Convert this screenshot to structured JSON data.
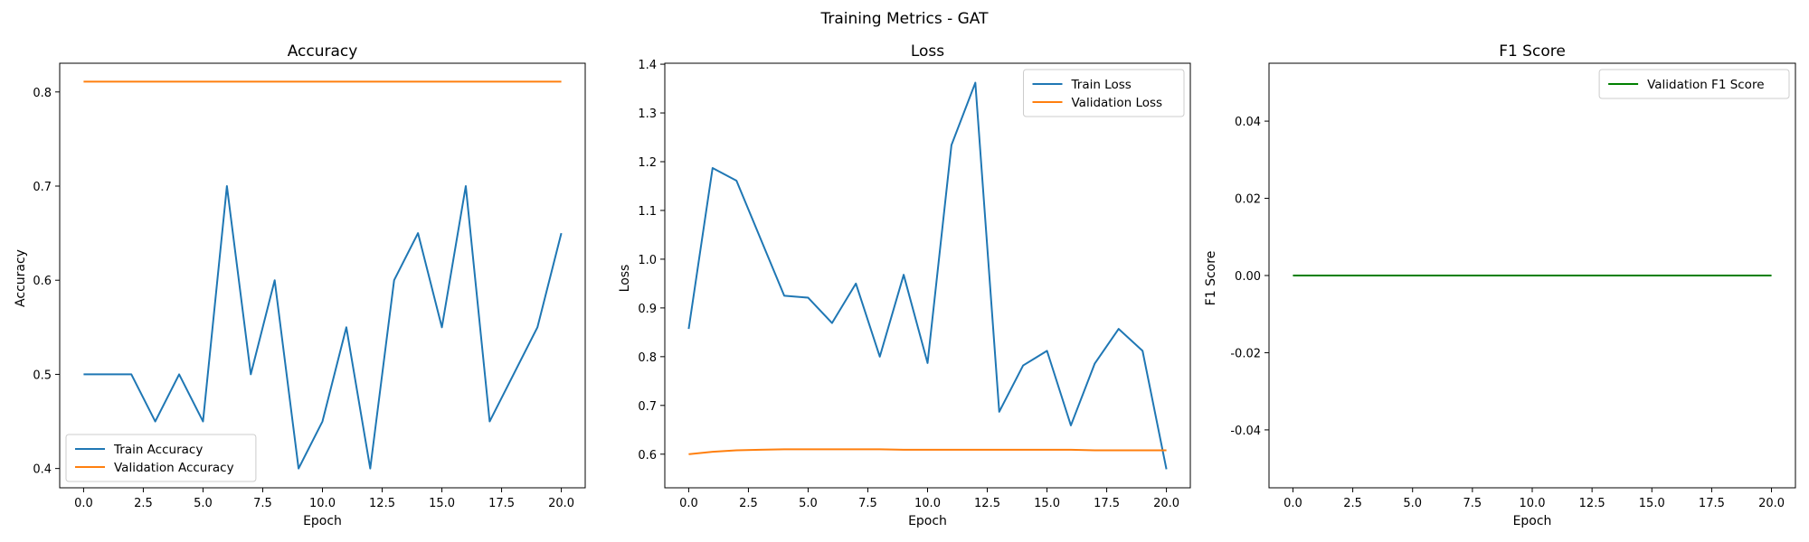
{
  "figure": {
    "suptitle": "Training Metrics - GAT"
  },
  "colors": {
    "train": "#1f77b4",
    "validation": "#ff7f0e",
    "f1": "#008000",
    "axes": "#000000",
    "legend_border": "#cccccc"
  },
  "chart_data": [
    {
      "type": "line",
      "title": "Accuracy",
      "xlabel": "Epoch",
      "ylabel": "Accuracy",
      "xlim": [
        -1.0,
        21.0
      ],
      "ylim": [
        0.3795,
        0.8305
      ],
      "xticks": [
        0.0,
        2.5,
        5.0,
        7.5,
        10.0,
        12.5,
        15.0,
        17.5,
        20.0
      ],
      "yticks": [
        0.4,
        0.5,
        0.6,
        0.7,
        0.8
      ],
      "legend_position": "lower-left",
      "grid": false,
      "series": [
        {
          "name": "Train Accuracy",
          "color_key": "train",
          "x": [
            0,
            1,
            2,
            3,
            4,
            5,
            6,
            7,
            8,
            9,
            10,
            11,
            12,
            13,
            14,
            15,
            16,
            17,
            18,
            19,
            20
          ],
          "y": [
            0.5,
            0.5,
            0.5,
            0.45,
            0.5,
            0.45,
            0.7,
            0.5,
            0.6,
            0.4,
            0.45,
            0.55,
            0.4,
            0.6,
            0.65,
            0.55,
            0.7,
            0.45,
            0.5,
            0.55,
            0.65
          ]
        },
        {
          "name": "Validation Accuracy",
          "color_key": "validation",
          "x": [
            0,
            1,
            2,
            3,
            4,
            5,
            6,
            7,
            8,
            9,
            10,
            11,
            12,
            13,
            14,
            15,
            16,
            17,
            18,
            19,
            20
          ],
          "y": [
            0.811,
            0.811,
            0.811,
            0.811,
            0.811,
            0.811,
            0.811,
            0.811,
            0.811,
            0.811,
            0.811,
            0.811,
            0.811,
            0.811,
            0.811,
            0.811,
            0.811,
            0.811,
            0.811,
            0.811,
            0.811
          ]
        }
      ]
    },
    {
      "type": "line",
      "title": "Loss",
      "xlabel": "Epoch",
      "ylabel": "Loss",
      "xlim": [
        -1.0,
        21.0
      ],
      "ylim": [
        0.531,
        1.402
      ],
      "xticks": [
        0.0,
        2.5,
        5.0,
        7.5,
        10.0,
        12.5,
        15.0,
        17.5,
        20.0
      ],
      "yticks": [
        0.6,
        0.7,
        0.8,
        0.9,
        1.0,
        1.1,
        1.2,
        1.3,
        1.4
      ],
      "legend_position": "upper-right",
      "grid": false,
      "series": [
        {
          "name": "Train Loss",
          "color_key": "train",
          "x": [
            0,
            1,
            2,
            3,
            4,
            5,
            6,
            7,
            8,
            9,
            10,
            11,
            12,
            13,
            14,
            15,
            16,
            17,
            18,
            19,
            20
          ],
          "y": [
            0.857,
            1.187,
            1.161,
            1.043,
            0.925,
            0.921,
            0.869,
            0.95,
            0.8,
            0.968,
            0.787,
            1.234,
            1.362,
            0.687,
            0.782,
            0.812,
            0.659,
            0.786,
            0.857,
            0.812,
            0.569
          ]
        },
        {
          "name": "Validation Loss",
          "color_key": "validation",
          "x": [
            0,
            1,
            2,
            3,
            4,
            5,
            6,
            7,
            8,
            9,
            10,
            11,
            12,
            13,
            14,
            15,
            16,
            17,
            18,
            19,
            20
          ],
          "y": [
            0.6,
            0.605,
            0.608,
            0.609,
            0.61,
            0.61,
            0.61,
            0.61,
            0.61,
            0.609,
            0.609,
            0.609,
            0.609,
            0.609,
            0.609,
            0.609,
            0.609,
            0.608,
            0.608,
            0.608,
            0.608
          ]
        }
      ]
    },
    {
      "type": "line",
      "title": "F1 Score",
      "xlabel": "Epoch",
      "ylabel": "F1 Score",
      "xlim": [
        -1.0,
        21.0
      ],
      "ylim": [
        -0.055,
        0.055
      ],
      "xticks": [
        0.0,
        2.5,
        5.0,
        7.5,
        10.0,
        12.5,
        15.0,
        17.5,
        20.0
      ],
      "yticks": [
        -0.04,
        -0.02,
        0.0,
        0.02,
        0.04
      ],
      "legend_position": "upper-right",
      "grid": false,
      "series": [
        {
          "name": "Validation F1 Score",
          "color_key": "f1",
          "x": [
            0,
            1,
            2,
            3,
            4,
            5,
            6,
            7,
            8,
            9,
            10,
            11,
            12,
            13,
            14,
            15,
            16,
            17,
            18,
            19,
            20
          ],
          "y": [
            0,
            0,
            0,
            0,
            0,
            0,
            0,
            0,
            0,
            0,
            0,
            0,
            0,
            0,
            0,
            0,
            0,
            0,
            0,
            0,
            0
          ]
        }
      ]
    }
  ]
}
